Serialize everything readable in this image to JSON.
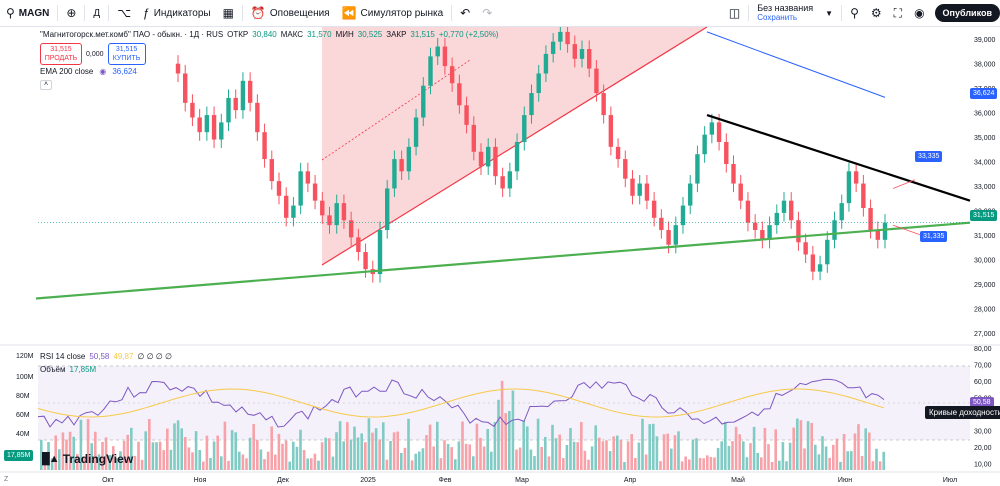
{
  "toolbar": {
    "ticker": "MAGN",
    "interval": "Д",
    "indicators": "Индикаторы",
    "alerts": "Оповещения",
    "replay": "Симулятор рынка",
    "layout_name": "Без названия",
    "layout_status": "Сохранить",
    "publish": "Опубликов"
  },
  "legend": {
    "name": "\"Магнитогорск.мет.комб\" ПАО - обыкн. · 1Д · RUS",
    "open_label": "ОТКР",
    "open": "30,840",
    "high_label": "МАКС",
    "high": "31,570",
    "low_label": "МИН",
    "low": "30,525",
    "close_label": "ЗАКР",
    "close": "31,515",
    "change": "+0,770 (+2,50%)",
    "sell_price": "31,515",
    "sell_label": "ПРОДАТЬ",
    "spread": "0,000",
    "buy_price": "31,515",
    "buy_label": "КУПИТЬ",
    "ema_label": "EMA 200 close",
    "ema_value": "36,624"
  },
  "rsi_legend": {
    "label": "RSI 14 close",
    "rsi_value": "50,58",
    "ma_value": "49,87",
    "zeros": "∅ ∅ ∅ ∅"
  },
  "volume_legend": {
    "label": "Объём",
    "value": "17,85M"
  },
  "logo_text": "TradingView",
  "price_tags": {
    "ema": "36,624",
    "last": "31,515",
    "upper_target": "33,335",
    "lower_target": "31,335",
    "rsi": "50,58",
    "volume": "17,85M"
  },
  "tooltip": "Кривые доходности",
  "colors": {
    "up": "#089981",
    "down": "#f23645",
    "up_candle": "#22ab94",
    "down_candle": "#f7525f",
    "ema": "#2962ff",
    "rsi": "#7e57c2",
    "rsi_ma": "#f7c948",
    "support": "#4caf50",
    "resistance": "#000000",
    "triangle_fill": "#f8c9cc",
    "triangle_line": "#f23645"
  },
  "chart_data": {
    "type": "candlestick",
    "price_axis": {
      "min": 26.5,
      "max": 39.5,
      "ticks": [
        "39,000",
        "38,000",
        "37,000",
        "36,000",
        "35,000",
        "34,000",
        "33,000",
        "32,000",
        "31,000",
        "30,000",
        "29,000",
        "28,000",
        "27,000"
      ]
    },
    "rsi_axis": {
      "ticks": [
        "80,00",
        "70,00",
        "60,00",
        "50,00",
        "40,00",
        "30,00",
        "20,00",
        "10,00"
      ]
    },
    "volume_axis": {
      "ticks": [
        "100M",
        "80M",
        "60M",
        "40M",
        "20M"
      ]
    },
    "x_ticks": [
      "Окт",
      "Ноя",
      "Дек",
      "2025",
      "Фев",
      "Мар",
      "Апр",
      "Май",
      "Июн",
      "Июл"
    ],
    "candles_close": [
      37.6,
      36.4,
      35.8,
      35.2,
      35.9,
      34.9,
      35.6,
      36.6,
      36.1,
      37.3,
      36.4,
      35.2,
      34.1,
      33.2,
      32.6,
      31.7,
      32.2,
      33.6,
      33.1,
      32.4,
      31.8,
      31.4,
      32.3,
      31.6,
      30.9,
      30.3,
      29.6,
      29.4,
      31.2,
      32.9,
      34.1,
      33.6,
      34.6,
      35.8,
      37.1,
      38.3,
      38.7,
      37.9,
      37.2,
      36.3,
      35.5,
      34.4,
      33.8,
      34.6,
      33.4,
      32.9,
      33.6,
      34.8,
      35.9,
      36.8,
      37.6,
      38.4,
      38.9,
      39.3,
      38.8,
      38.2,
      38.6,
      37.8,
      36.8,
      35.9,
      34.6,
      34.1,
      33.3,
      32.6,
      33.1,
      32.4,
      31.7,
      31.2,
      30.6,
      31.4,
      32.2,
      33.1,
      34.3,
      35.1,
      35.6,
      34.8,
      33.9,
      33.1,
      32.4,
      31.5,
      31.2,
      30.8,
      31.4,
      31.9,
      32.4,
      31.6,
      30.7,
      30.2,
      29.5,
      29.8,
      30.8,
      31.6,
      32.3,
      33.6,
      33.1,
      32.1,
      31.2,
      30.8,
      31.5
    ],
    "ema200": [
      {
        "x": "2025-03-05",
        "y": 39.3
      },
      {
        "x": "2025-04-01",
        "y": 38.7
      },
      {
        "x": "2025-05-01",
        "y": 37.8
      },
      {
        "x": "2025-06-01",
        "y": 37.0
      },
      {
        "x": "2025-06-16",
        "y": 36.62
      }
    ],
    "levels": {
      "upper_target": 33.335,
      "lower_target": 31.335,
      "last": 31.515,
      "ema": 36.624
    },
    "rsi": {
      "value": 50.58,
      "ma": 49.87,
      "upper_band": 70,
      "lower_band": 30
    },
    "volume_last": 17.85
  }
}
